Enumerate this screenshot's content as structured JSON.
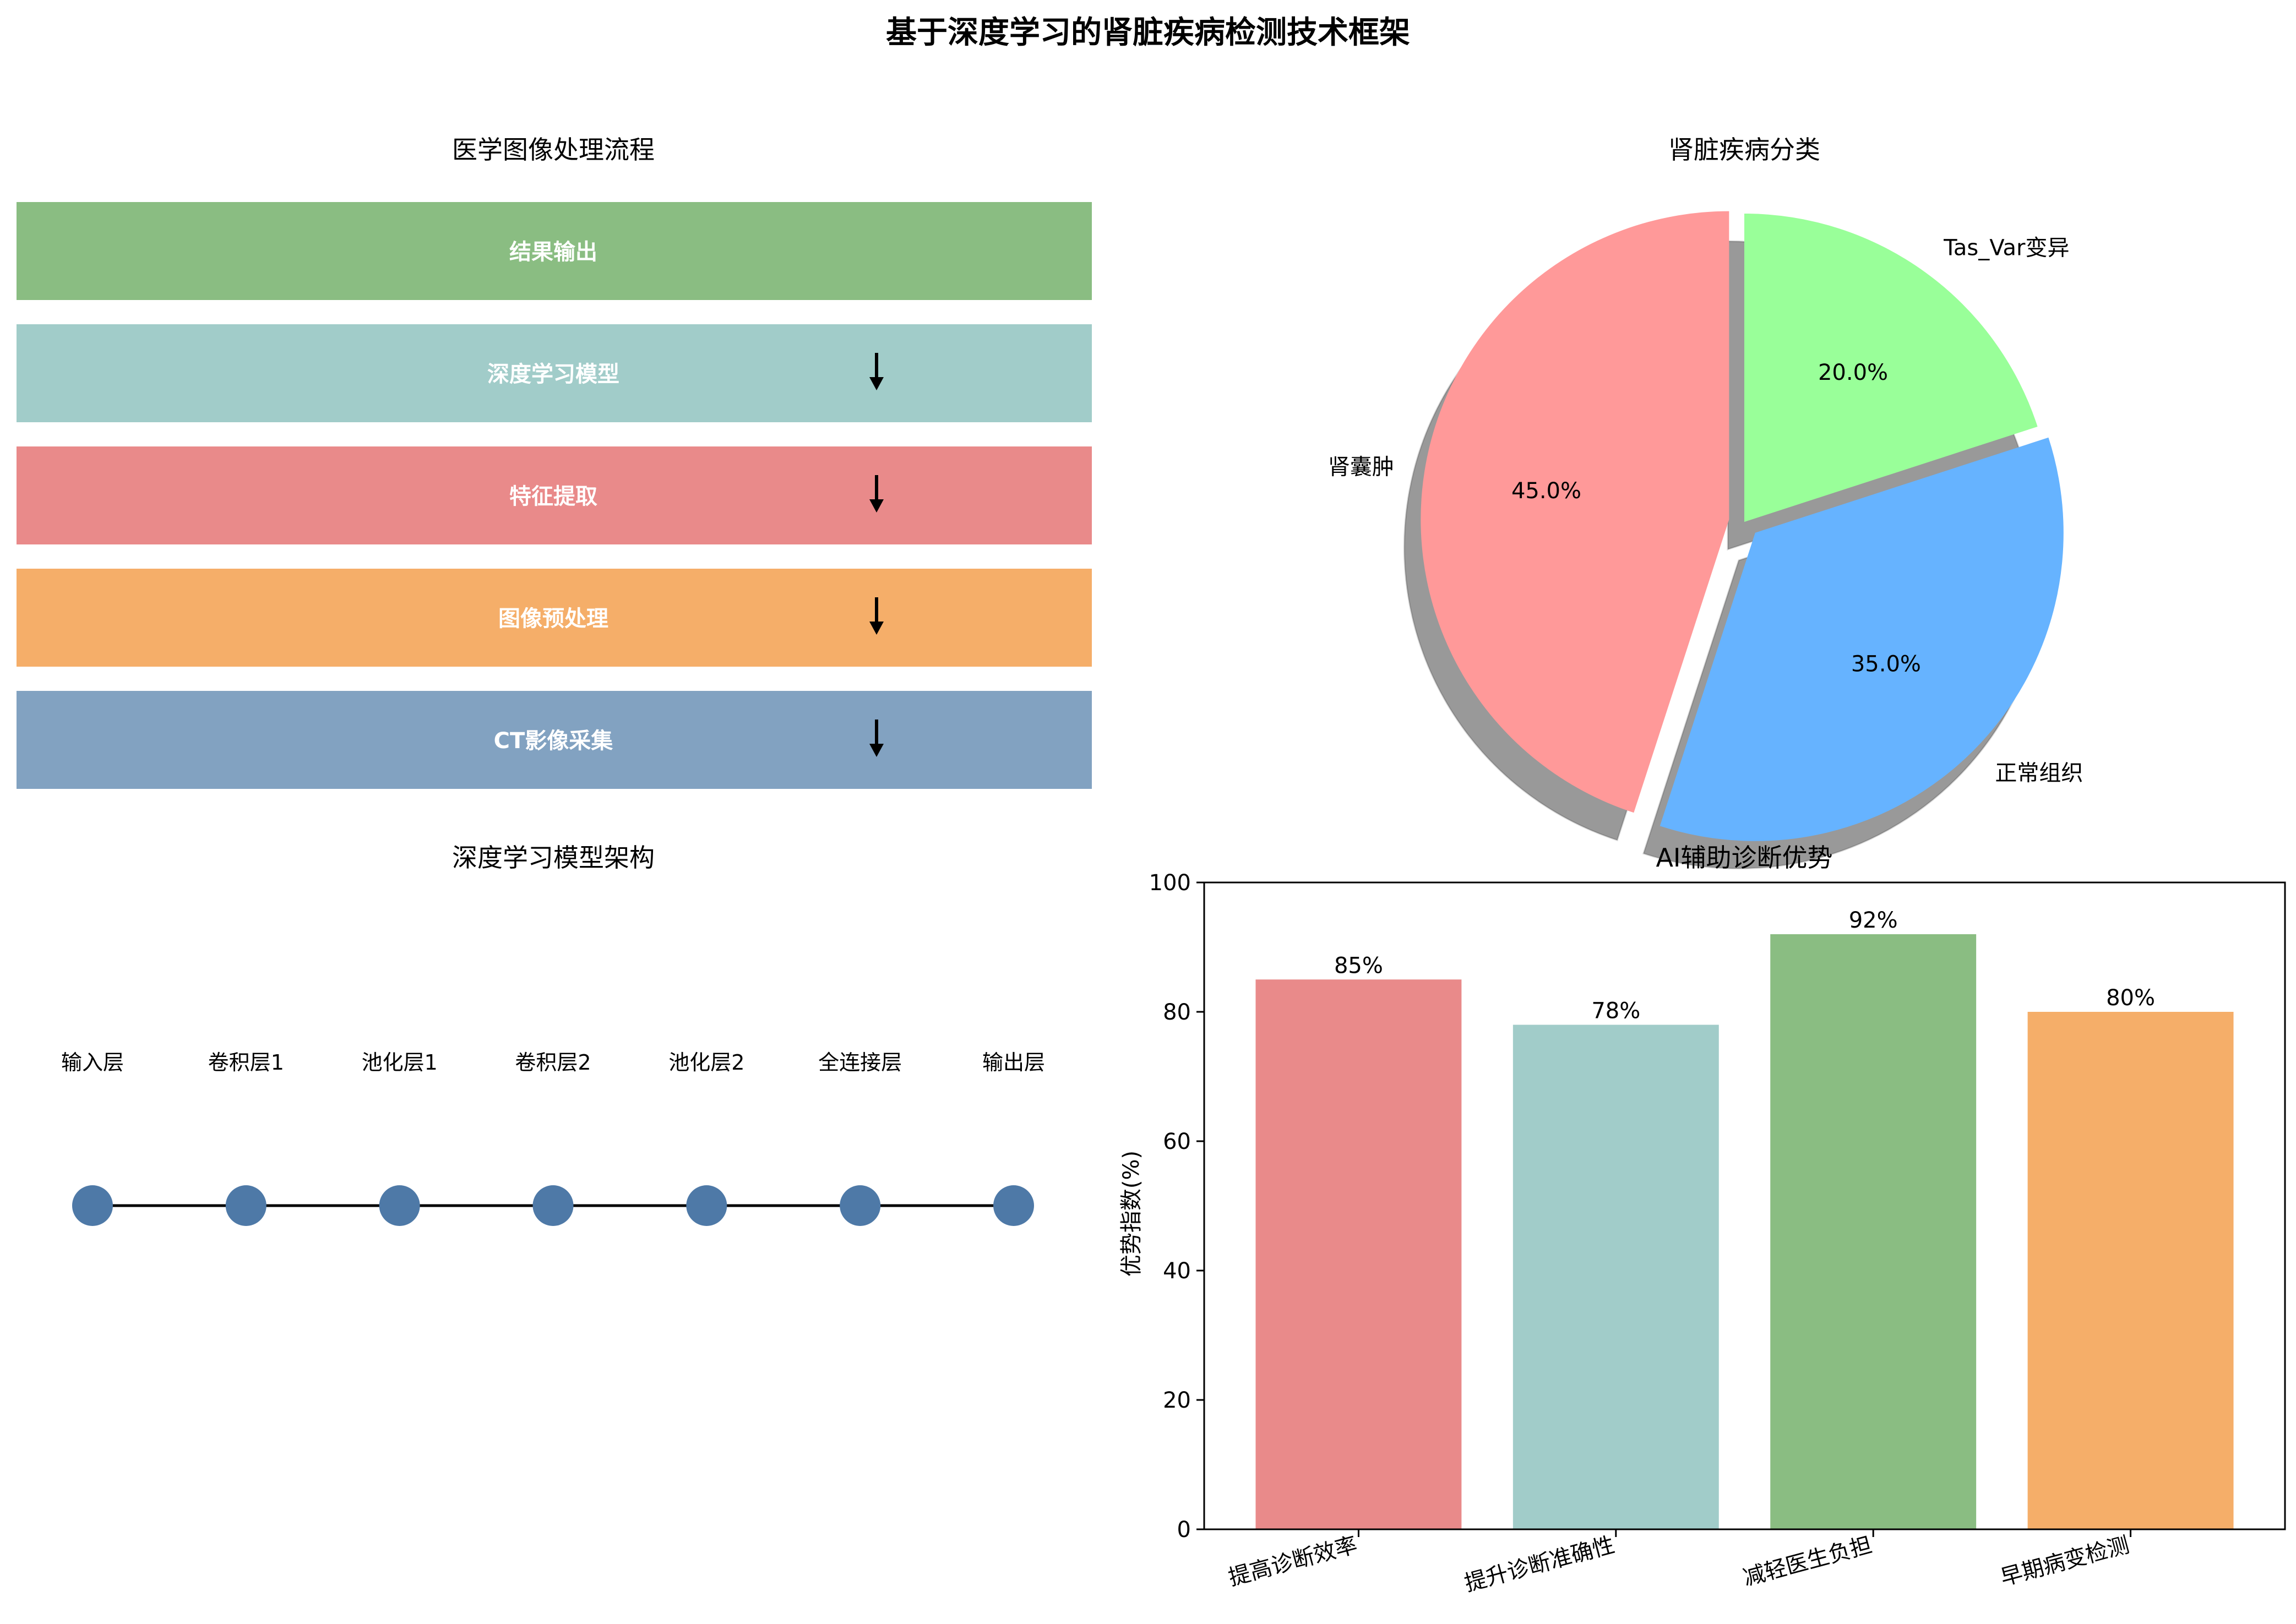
{
  "title": "基于深度学习的肾脏疾病检测技术框架",
  "panels": {
    "flow": {
      "title": "医学图像处理流程"
    },
    "pie": {
      "title": "肾脏疾病分类"
    },
    "arch": {
      "title": "深度学习模型架构"
    },
    "bar": {
      "title": "AI辅助诊断优势"
    }
  },
  "chart_data": [
    {
      "type": "flowchart",
      "title": "医学图像处理流程",
      "steps": [
        {
          "label": "结果输出",
          "color": "#8abd82",
          "arrow": false
        },
        {
          "label": "深度学习模型",
          "color": "#a1ccc9",
          "arrow": true
        },
        {
          "label": "特征提取",
          "color": "#e98a8a",
          "arrow": true
        },
        {
          "label": "图像预处理",
          "color": "#f5ae69",
          "arrow": true
        },
        {
          "label": "CT影像采集",
          "color": "#82a2c1",
          "arrow": true
        }
      ]
    },
    {
      "type": "pie",
      "title": "肾脏疾病分类",
      "slices": [
        {
          "label": "肾囊肿",
          "value": 45.0,
          "pct_label": "45.0%",
          "color": "#ff9999",
          "exploded": true
        },
        {
          "label": "正常组织",
          "value": 35.0,
          "pct_label": "35.0%",
          "color": "#66b3ff",
          "exploded": true
        },
        {
          "label": "Tas_Var变异",
          "value": 20.0,
          "pct_label": "20.0%",
          "color": "#99ff99",
          "exploded": false
        }
      ],
      "start_angle": 90,
      "shadow": true
    },
    {
      "type": "diagram",
      "title": "深度学习模型架构",
      "nodes": [
        "输入层",
        "卷积层1",
        "池化层1",
        "卷积层2",
        "池化层2",
        "全连接层",
        "输出层"
      ],
      "node_color": "#4e79a7"
    },
    {
      "type": "bar",
      "title": "AI辅助诊断优势",
      "categories": [
        "提高诊断效率",
        "提升诊断准确性",
        "减轻医生负担",
        "早期病变检测"
      ],
      "values": [
        85,
        78,
        92,
        80
      ],
      "value_labels": [
        "85%",
        "78%",
        "92%",
        "80%"
      ],
      "colors": [
        "#e98a8a",
        "#a1ccc9",
        "#8abd82",
        "#f5ae69"
      ],
      "xlabel": "",
      "ylabel": "优势指数(%)",
      "ylim": [
        0,
        100
      ],
      "yticks": [
        0,
        20,
        40,
        60,
        80,
        100
      ],
      "grid": false
    }
  ]
}
